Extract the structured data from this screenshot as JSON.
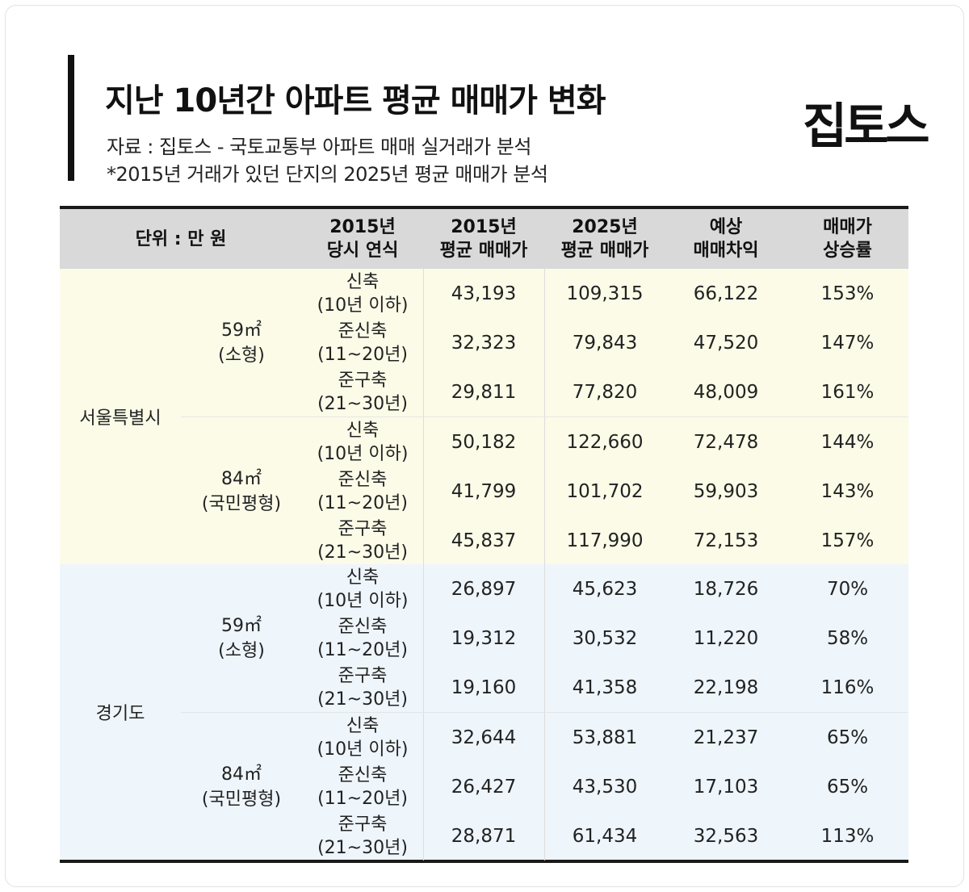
{
  "header": {
    "title": "지난 10년간 아파트 평균 매매가 변화",
    "source": "자료 : 집토스 - 국토교통부 아파트 매매 실거래가 분석",
    "note": "*2015년 거래가 있던 단지의 2025년 평균 매매가 분석",
    "logo": "집토스"
  },
  "table": {
    "columns": {
      "unit": "단위 : 만 원",
      "age_1": "2015년",
      "age_2": "당시 연식",
      "p2015_1": "2015년",
      "p2015_2": "평균 매매가",
      "p2025_1": "2025년",
      "p2025_2": "평균 매매가",
      "diff_1": "예상",
      "diff_2": "매매차익",
      "rate_1": "매매가",
      "rate_2": "상승률"
    },
    "regions": [
      {
        "name": "서울특별시",
        "color": "#fbfbe8",
        "groups": [
          {
            "size": "59㎡",
            "type": "(소형)",
            "rows": [
              {
                "age": "신축",
                "age_range": "(10년 이하)",
                "p2015": "43,193",
                "p2025": "109,315",
                "diff": "66,122",
                "rate": "153%"
              },
              {
                "age": "준신축",
                "age_range": "(11~20년)",
                "p2015": "32,323",
                "p2025": "79,843",
                "diff": "47,520",
                "rate": "147%"
              },
              {
                "age": "준구축",
                "age_range": "(21~30년)",
                "p2015": "29,811",
                "p2025": "77,820",
                "diff": "48,009",
                "rate": "161%"
              }
            ]
          },
          {
            "size": "84㎡",
            "type": "(국민평형)",
            "rows": [
              {
                "age": "신축",
                "age_range": "(10년 이하)",
                "p2015": "50,182",
                "p2025": "122,660",
                "diff": "72,478",
                "rate": "144%"
              },
              {
                "age": "준신축",
                "age_range": "(11~20년)",
                "p2015": "41,799",
                "p2025": "101,702",
                "diff": "59,903",
                "rate": "143%"
              },
              {
                "age": "준구축",
                "age_range": "(21~30년)",
                "p2015": "45,837",
                "p2025": "117,990",
                "diff": "72,153",
                "rate": "157%"
              }
            ]
          }
        ]
      },
      {
        "name": "경기도",
        "color": "#eef5fb",
        "groups": [
          {
            "size": "59㎡",
            "type": "(소형)",
            "rows": [
              {
                "age": "신축",
                "age_range": "(10년 이하)",
                "p2015": "26,897",
                "p2025": "45,623",
                "diff": "18,726",
                "rate": "70%"
              },
              {
                "age": "준신축",
                "age_range": "(11~20년)",
                "p2015": "19,312",
                "p2025": "30,532",
                "diff": "11,220",
                "rate": "58%"
              },
              {
                "age": "준구축",
                "age_range": "(21~30년)",
                "p2015": "19,160",
                "p2025": "41,358",
                "diff": "22,198",
                "rate": "116%"
              }
            ]
          },
          {
            "size": "84㎡",
            "type": "(국민평형)",
            "rows": [
              {
                "age": "신축",
                "age_range": "(10년 이하)",
                "p2015": "32,644",
                "p2025": "53,881",
                "diff": "21,237",
                "rate": "65%"
              },
              {
                "age": "준신축",
                "age_range": "(11~20년)",
                "p2015": "26,427",
                "p2025": "43,530",
                "diff": "17,103",
                "rate": "65%"
              },
              {
                "age": "준구축",
                "age_range": "(21~30년)",
                "p2015": "28,871",
                "p2025": "61,434",
                "diff": "32,563",
                "rate": "113%"
              }
            ]
          }
        ]
      }
    ]
  }
}
